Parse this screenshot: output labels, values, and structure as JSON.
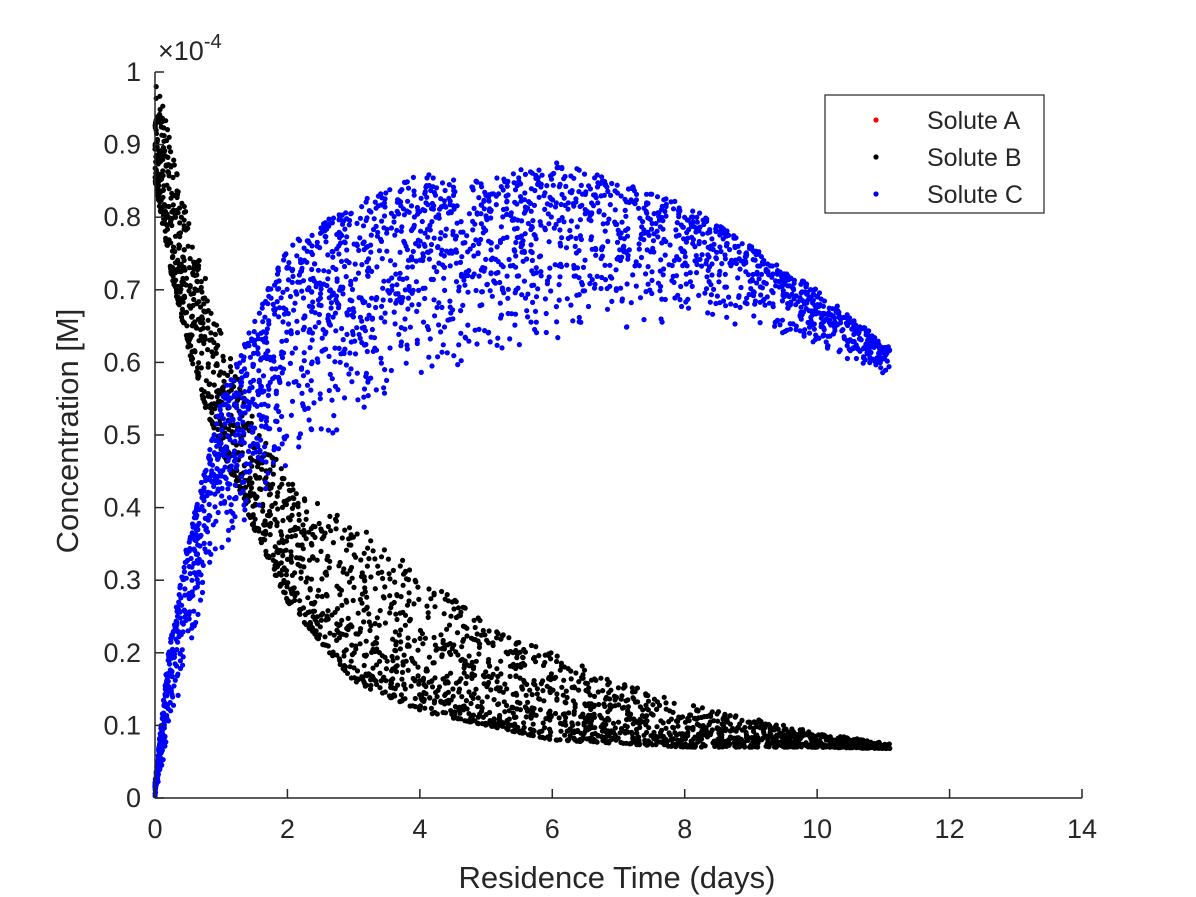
{
  "chart_data": {
    "type": "scatter",
    "title": "",
    "xlabel": "Residence Time (days)",
    "ylabel": "Concentration [M]",
    "y_exponent_label": "×10",
    "y_exponent_power": "-4",
    "xlim": [
      0,
      14
    ],
    "ylim": [
      0,
      1
    ],
    "x_scale_note": "values in units of 1e-4 M",
    "x_ticks": [
      0,
      2,
      4,
      6,
      8,
      10,
      12,
      14
    ],
    "y_ticks": [
      0,
      0.1,
      0.2,
      0.3,
      0.4,
      0.5,
      0.6,
      0.7,
      0.8,
      0.9,
      1
    ],
    "grid": false,
    "legend_position": "top-right",
    "series": [
      {
        "name": "Solute A",
        "color": "#ff0000",
        "points": []
      },
      {
        "name": "Solute B",
        "color": "#000000",
        "shape": "decay",
        "envelope": [
          {
            "x": 0.0,
            "y_low": 0.85,
            "y_high": 1.0
          },
          {
            "x": 0.25,
            "y_low": 0.72,
            "y_high": 0.9
          },
          {
            "x": 0.5,
            "y_low": 0.62,
            "y_high": 0.8
          },
          {
            "x": 0.75,
            "y_low": 0.54,
            "y_high": 0.72
          },
          {
            "x": 1.0,
            "y_low": 0.48,
            "y_high": 0.64
          },
          {
            "x": 1.5,
            "y_low": 0.37,
            "y_high": 0.52
          },
          {
            "x": 2.0,
            "y_low": 0.27,
            "y_high": 0.44
          },
          {
            "x": 3.0,
            "y_low": 0.16,
            "y_high": 0.38
          },
          {
            "x": 4.0,
            "y_low": 0.12,
            "y_high": 0.31
          },
          {
            "x": 5.0,
            "y_low": 0.1,
            "y_high": 0.24
          },
          {
            "x": 6.0,
            "y_low": 0.08,
            "y_high": 0.2
          },
          {
            "x": 7.0,
            "y_low": 0.075,
            "y_high": 0.16
          },
          {
            "x": 8.0,
            "y_low": 0.07,
            "y_high": 0.13
          },
          {
            "x": 9.0,
            "y_low": 0.07,
            "y_high": 0.11
          },
          {
            "x": 10.0,
            "y_low": 0.07,
            "y_high": 0.09
          },
          {
            "x": 11.1,
            "y_low": 0.068,
            "y_high": 0.075
          }
        ]
      },
      {
        "name": "Solute C",
        "color": "#0000ff",
        "shape": "rise-and-fall",
        "envelope": [
          {
            "x": 0.0,
            "y_low": 0.0,
            "y_high": 0.02
          },
          {
            "x": 0.2,
            "y_low": 0.08,
            "y_high": 0.2
          },
          {
            "x": 0.5,
            "y_low": 0.2,
            "y_high": 0.36
          },
          {
            "x": 1.0,
            "y_low": 0.33,
            "y_high": 0.55
          },
          {
            "x": 1.5,
            "y_low": 0.38,
            "y_high": 0.66
          },
          {
            "x": 2.0,
            "y_low": 0.45,
            "y_high": 0.76
          },
          {
            "x": 3.0,
            "y_low": 0.52,
            "y_high": 0.82
          },
          {
            "x": 4.0,
            "y_low": 0.56,
            "y_high": 0.86
          },
          {
            "x": 5.0,
            "y_low": 0.6,
            "y_high": 0.85
          },
          {
            "x": 6.0,
            "y_low": 0.63,
            "y_high": 0.88
          },
          {
            "x": 7.0,
            "y_low": 0.64,
            "y_high": 0.85
          },
          {
            "x": 8.0,
            "y_low": 0.66,
            "y_high": 0.82
          },
          {
            "x": 9.0,
            "y_low": 0.65,
            "y_high": 0.76
          },
          {
            "x": 10.0,
            "y_low": 0.62,
            "y_high": 0.7
          },
          {
            "x": 11.1,
            "y_low": 0.58,
            "y_high": 0.62
          }
        ]
      }
    ]
  }
}
